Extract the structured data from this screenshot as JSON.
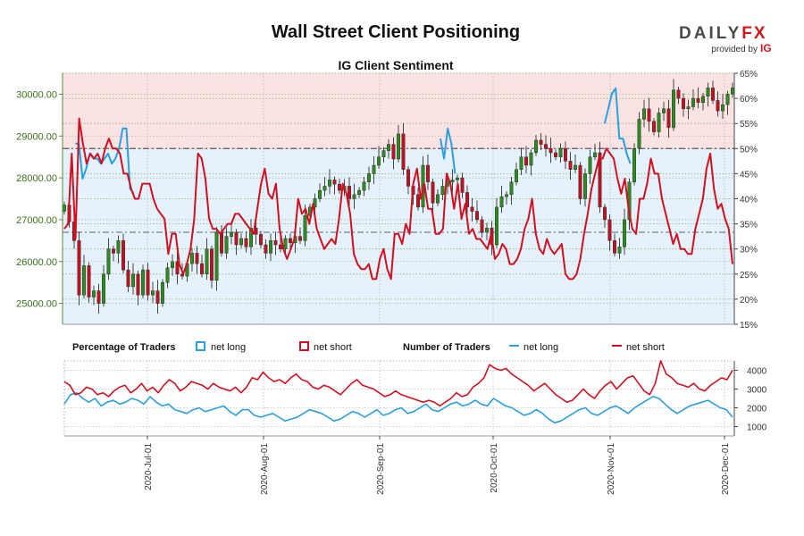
{
  "header": {
    "title": "Wall Street Client Positioning",
    "logo": {
      "brand_main": "DAILY",
      "brand_accent": "FX",
      "provided_by": "provided by",
      "provider": "IG"
    }
  },
  "chart_data": [
    {
      "type": "candlestick",
      "title": "IG Client Sentiment",
      "y_left": {
        "ticks": [
          "25000.00",
          "26000.00",
          "27000.00",
          "28000.00",
          "29000.00",
          "30000.00"
        ],
        "range": [
          24500,
          30500
        ]
      },
      "y_right": {
        "ticks": [
          "15%",
          "20%",
          "25%",
          "30%",
          "35%",
          "40%",
          "45%",
          "50%",
          "55%",
          "60%",
          "65%"
        ],
        "range": [
          15,
          65
        ]
      },
      "x_ticks": [
        "2020-Jul-01",
        "2020-Aug-01",
        "2020-Sep-01",
        "2020-Oct-01",
        "2020-Nov-01",
        "2020-Dec-01"
      ],
      "reference_lines": {
        "percent": 50,
        "price": 26700
      },
      "price_close": [
        27350,
        26950,
        26500,
        25200,
        25900,
        25150,
        25300,
        25000,
        25700,
        26300,
        26200,
        26500,
        25800,
        25400,
        25700,
        25200,
        25800,
        25200,
        25300,
        25000,
        25500,
        25850,
        26000,
        25700,
        25650,
        25950,
        26200,
        25950,
        25700,
        26300,
        25550,
        26700,
        26200,
        26600,
        26700,
        26400,
        26550,
        26350,
        26800,
        26650,
        26400,
        26200,
        26500,
        26400,
        26300,
        26550,
        26450,
        26600,
        26500,
        27100,
        27300,
        27500,
        27700,
        27800,
        27950,
        27850,
        27700,
        27800,
        27500,
        27600,
        27700,
        27900,
        28100,
        28300,
        28500,
        28650,
        28800,
        28450,
        29050,
        28200,
        27800,
        27600,
        27300,
        28300,
        27900,
        27400,
        27600,
        27800,
        27900,
        27950,
        28000,
        27650,
        27300,
        27200,
        27000,
        26700,
        26800,
        26400,
        27300,
        27550,
        27600,
        27900,
        28200,
        28500,
        28300,
        28600,
        28900,
        28800,
        28700,
        28600,
        28500,
        28700,
        28400,
        28200,
        28300,
        27500,
        28100,
        28500,
        28600,
        27300,
        27000,
        26500,
        26200,
        26350,
        27000,
        27900,
        28700,
        29400,
        29650,
        29350,
        29100,
        29550,
        29650,
        29200,
        30100,
        29900,
        29650,
        29700,
        29900,
        29800,
        29950,
        30150,
        29850,
        29600,
        29750,
        30000,
        30150
      ],
      "percent_net_long": [
        null,
        null,
        null,
        51,
        51,
        44,
        46,
        49,
        48,
        48,
        47,
        48,
        49,
        47,
        48,
        50,
        54,
        54,
        42,
        41,
        null,
        null,
        null,
        null,
        null,
        null,
        null,
        null,
        null,
        null,
        null,
        null,
        null,
        null,
        null,
        null,
        null,
        null,
        null,
        null,
        null,
        null,
        null,
        null,
        null,
        null,
        null,
        null,
        null,
        null,
        null,
        null,
        null,
        null,
        null,
        null,
        null,
        null,
        null,
        null,
        null,
        null,
        null,
        null,
        null,
        null,
        null,
        null,
        null,
        null,
        null,
        null,
        null,
        null,
        null,
        null,
        null,
        null,
        null,
        null,
        null,
        null,
        null,
        null,
        null,
        null,
        null,
        null,
        null,
        null,
        null,
        null,
        null,
        null,
        null,
        null,
        null,
        null,
        null,
        null,
        null,
        null,
        null,
        52,
        48,
        54,
        51,
        45,
        null,
        null,
        null,
        null,
        null,
        null,
        null,
        null,
        null,
        null,
        null,
        null,
        null,
        null,
        null,
        null,
        null,
        null,
        null,
        null,
        null,
        null,
        null,
        null,
        null,
        null,
        null,
        null,
        null,
        null,
        null,
        null,
        null,
        null,
        null,
        null,
        null,
        null,
        null,
        null,
        55,
        58,
        61,
        62,
        52,
        52,
        49,
        47,
        null,
        null,
        null,
        null,
        null,
        null,
        null,
        null,
        null,
        null,
        null,
        null,
        null,
        null,
        null,
        null,
        null,
        null,
        null,
        null,
        null,
        null,
        null,
        null,
        null,
        null,
        null,
        null
      ],
      "percent_net_short": [
        34,
        35,
        49,
        32,
        56,
        51,
        47,
        49,
        48,
        49,
        47,
        50,
        52,
        50,
        50,
        49,
        45,
        45,
        42,
        40,
        40,
        43,
        43,
        43,
        40,
        38,
        37,
        36,
        29,
        33,
        33,
        27,
        25,
        27,
        30,
        36,
        49,
        48,
        44,
        36,
        34,
        34,
        33,
        34,
        35,
        35,
        37,
        37,
        36,
        35,
        34,
        33,
        38,
        43,
        46,
        41,
        40,
        43,
        34,
        30,
        28,
        30,
        32,
        40,
        37,
        38,
        35,
        39,
        34,
        32,
        30,
        31,
        32,
        31,
        36,
        43,
        41,
        37,
        29,
        27,
        26,
        26,
        27,
        24,
        24,
        28,
        30,
        26,
        24,
        33,
        33,
        31,
        35,
        33,
        43,
        46,
        40,
        43,
        38,
        38,
        33,
        33,
        34,
        45,
        43,
        38,
        43,
        36,
        39,
        33,
        34,
        32,
        32,
        31,
        30,
        33,
        28,
        29,
        31,
        30,
        27,
        27,
        28,
        30,
        34,
        36,
        40,
        33,
        30,
        29,
        32,
        30,
        29,
        30,
        31,
        25,
        24,
        24,
        25,
        28,
        33,
        37,
        42,
        45,
        48,
        48,
        50,
        49,
        48,
        44,
        41,
        44,
        38,
        34,
        33,
        40,
        40,
        43,
        48,
        45,
        45,
        40,
        37,
        34,
        31,
        33,
        30,
        30,
        29,
        29,
        34,
        37,
        40,
        46,
        49,
        42,
        38,
        39,
        36,
        34,
        27
      ],
      "series": [
        {
          "name": "net long",
          "values": [
            2200,
            2700,
            2800,
            2500,
            2300,
            2500,
            2100,
            2300,
            2400,
            2200,
            2300,
            2500,
            2400,
            2200,
            2600,
            2300,
            2100,
            2200,
            1900,
            1800,
            1700,
            1900,
            2000,
            1800,
            1900,
            2000,
            2100,
            1800,
            1600,
            1900,
            1900,
            1600,
            1500,
            1600,
            1700,
            1500,
            1300,
            1400,
            1500,
            1700,
            1900,
            1800,
            1700,
            1500,
            1300,
            1400,
            1600,
            1800,
            1700,
            1500,
            1700,
            1900,
            1600,
            1700,
            1900,
            2000,
            1700,
            1800,
            2000,
            2200,
            1900,
            1800,
            2000,
            2200,
            2300,
            2100,
            2200,
            2400,
            2200,
            2100,
            2500,
            2300,
            2100,
            2000,
            1800,
            1600,
            1700,
            1900,
            1700,
            1400,
            1200,
            1300,
            1500,
            1700,
            1900,
            2000,
            1700,
            1600,
            1800,
            2000,
            2100,
            1900,
            1700,
            2000,
            2200,
            2400,
            2600,
            2500,
            2200,
            1900,
            1700,
            1900,
            2100,
            2200,
            2300,
            2400,
            2200,
            2000,
            1900,
            1500
          ]
        },
        {
          "name": "net short",
          "values": [
            3400,
            3200,
            2700,
            2800,
            3100,
            3000,
            2700,
            2800,
            2600,
            2900,
            3100,
            3200,
            2800,
            3000,
            3300,
            2900,
            3100,
            2800,
            3200,
            3500,
            3300,
            2900,
            3100,
            3400,
            3300,
            3200,
            3000,
            3300,
            3100,
            3000,
            2900,
            3100,
            2800,
            3100,
            3600,
            3500,
            3900,
            3600,
            3400,
            3500,
            3300,
            3600,
            3800,
            3500,
            3400,
            3100,
            3000,
            3200,
            3100,
            2900,
            2700,
            3000,
            3300,
            3500,
            3200,
            3100,
            3000,
            2800,
            2600,
            2700,
            2900,
            2700,
            2600,
            2500,
            2400,
            2300,
            2400,
            2300,
            2100,
            2300,
            2500,
            2800,
            2600,
            2700,
            3100,
            3300,
            3600,
            4300,
            4100,
            4000,
            4100,
            3800,
            3600,
            3400,
            3200,
            2900,
            3100,
            3300,
            3000,
            2700,
            2500,
            2300,
            2400,
            2700,
            3000,
            2700,
            2500,
            2900,
            3200,
            3400,
            3000,
            3300,
            3600,
            3700,
            3300,
            2900,
            2700,
            3300,
            4500,
            3800,
            3600,
            3300,
            3200,
            3100,
            3300,
            3000,
            2900,
            3200,
            3400,
            3600,
            3500,
            4000
          ]
        }
      ],
      "colors": {
        "net_long": "#2a9fe0",
        "net_short": "#d01020",
        "bull": "#2e8b1e",
        "bear": "#c21020",
        "upper_fill": "#fbe3e3",
        "lower_fill": "#e6f2fb",
        "grid_green": "#8ab57a"
      }
    },
    {
      "type": "line",
      "legend": {
        "percentage_label": "Percentage of Traders",
        "number_label": "Number of Traders",
        "net_long": "net long",
        "net_short": "net short"
      },
      "y_ticks": [
        "1000",
        "2000",
        "3000",
        "4000"
      ],
      "ylim": [
        500,
        4500
      ]
    }
  ]
}
